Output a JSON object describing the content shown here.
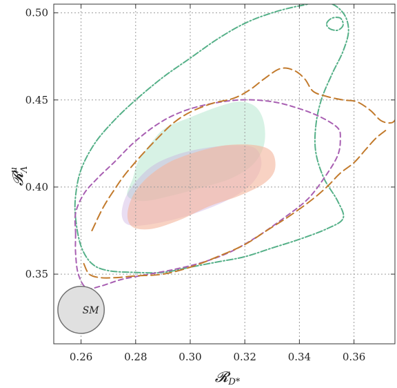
{
  "chart_data": {
    "type": "contour",
    "xlabel": "𝓡",
    "xlabel_sub": "D*",
    "ylabel": "𝓡",
    "ylabel_sup": "μ",
    "ylabel_sub": "Λ",
    "xlim": [
      0.25,
      0.375
    ],
    "ylim": [
      0.31,
      0.505
    ],
    "xticks": [
      0.26,
      0.28,
      0.3,
      0.32,
      0.34,
      0.36
    ],
    "xtick_labels": [
      "0.26",
      "0.28",
      "0.30",
      "0.32",
      "0.34",
      "0.36"
    ],
    "yticks": [
      0.35,
      0.4,
      0.45,
      0.5
    ],
    "ytick_labels": [
      "0.35",
      "0.40",
      "0.45",
      "0.50"
    ],
    "grid": true,
    "sm": {
      "label": "SM",
      "center": [
        0.26,
        0.3295
      ],
      "rx": 0.0085,
      "ry": 0.0135,
      "color": "#e0e0e0",
      "stroke": "#707070"
    },
    "regions": [
      {
        "id": "green",
        "color": "#a6e3c5",
        "opacity": 0.45,
        "points": [
          [
            0.277,
            0.395
          ],
          [
            0.279,
            0.405
          ],
          [
            0.281,
            0.415
          ],
          [
            0.286,
            0.426
          ],
          [
            0.291,
            0.434
          ],
          [
            0.3,
            0.44
          ],
          [
            0.31,
            0.446
          ],
          [
            0.318,
            0.449
          ],
          [
            0.324,
            0.446
          ],
          [
            0.327,
            0.437
          ],
          [
            0.327,
            0.424
          ],
          [
            0.323,
            0.413
          ],
          [
            0.315,
            0.405
          ],
          [
            0.305,
            0.4
          ],
          [
            0.293,
            0.395
          ],
          [
            0.283,
            0.392
          ]
        ]
      },
      {
        "id": "purple",
        "color": "#c6a5dc",
        "opacity": 0.38,
        "points": [
          [
            0.275,
            0.383
          ],
          [
            0.276,
            0.393
          ],
          [
            0.28,
            0.403
          ],
          [
            0.286,
            0.412
          ],
          [
            0.294,
            0.418
          ],
          [
            0.304,
            0.422
          ],
          [
            0.316,
            0.424
          ],
          [
            0.324,
            0.422
          ],
          [
            0.326,
            0.412
          ],
          [
            0.322,
            0.401
          ],
          [
            0.313,
            0.392
          ],
          [
            0.3,
            0.384
          ],
          [
            0.287,
            0.379
          ],
          [
            0.278,
            0.378
          ]
        ]
      },
      {
        "id": "orange",
        "color": "#f3b79e",
        "opacity": 0.62,
        "points": [
          [
            0.277,
            0.384
          ],
          [
            0.279,
            0.395
          ],
          [
            0.284,
            0.405
          ],
          [
            0.292,
            0.414
          ],
          [
            0.302,
            0.42
          ],
          [
            0.313,
            0.424
          ],
          [
            0.324,
            0.424
          ],
          [
            0.33,
            0.42
          ],
          [
            0.331,
            0.41
          ],
          [
            0.327,
            0.402
          ],
          [
            0.318,
            0.395
          ],
          [
            0.307,
            0.389
          ],
          [
            0.296,
            0.381
          ],
          [
            0.286,
            0.376
          ],
          [
            0.279,
            0.377
          ]
        ]
      }
    ],
    "contours": [
      {
        "id": "green-dotdash",
        "color": "#55b088",
        "dash": "9,3,2,3",
        "closed": true,
        "points": [
          [
            0.258,
            0.382
          ],
          [
            0.258,
            0.395
          ],
          [
            0.26,
            0.41
          ],
          [
            0.265,
            0.425
          ],
          [
            0.272,
            0.438
          ],
          [
            0.28,
            0.45
          ],
          [
            0.29,
            0.463
          ],
          [
            0.3,
            0.474
          ],
          [
            0.31,
            0.485
          ],
          [
            0.32,
            0.494
          ],
          [
            0.33,
            0.5
          ],
          [
            0.34,
            0.504
          ],
          [
            0.35,
            0.506
          ],
          [
            0.356,
            0.5
          ],
          [
            0.358,
            0.49
          ],
          [
            0.356,
            0.478
          ],
          [
            0.352,
            0.465
          ],
          [
            0.348,
            0.45
          ],
          [
            0.346,
            0.435
          ],
          [
            0.346,
            0.42
          ],
          [
            0.349,
            0.405
          ],
          [
            0.354,
            0.392
          ],
          [
            0.356,
            0.382
          ],
          [
            0.35,
            0.376
          ],
          [
            0.34,
            0.37
          ],
          [
            0.33,
            0.365
          ],
          [
            0.32,
            0.36
          ],
          [
            0.31,
            0.357
          ],
          [
            0.3,
            0.354
          ],
          [
            0.29,
            0.351
          ],
          [
            0.28,
            0.351
          ],
          [
            0.27,
            0.352
          ],
          [
            0.264,
            0.356
          ],
          [
            0.26,
            0.366
          ]
        ]
      },
      {
        "id": "green-dotdash-blob",
        "color": "#55b088",
        "dash": "9,3,2,3",
        "closed": true,
        "points": [
          [
            0.35,
            0.494
          ],
          [
            0.352,
            0.497
          ],
          [
            0.355,
            0.497
          ],
          [
            0.356,
            0.493
          ],
          [
            0.354,
            0.49
          ],
          [
            0.351,
            0.491
          ]
        ]
      },
      {
        "id": "purple-dashed",
        "color": "#a85fb2",
        "dash": "7,5",
        "closed": true,
        "points": [
          [
            0.258,
            0.373
          ],
          [
            0.258,
            0.385
          ],
          [
            0.261,
            0.396
          ],
          [
            0.266,
            0.405
          ],
          [
            0.272,
            0.414
          ],
          [
            0.279,
            0.425
          ],
          [
            0.287,
            0.435
          ],
          [
            0.295,
            0.442
          ],
          [
            0.305,
            0.447
          ],
          [
            0.318,
            0.45
          ],
          [
            0.33,
            0.449
          ],
          [
            0.34,
            0.445
          ],
          [
            0.348,
            0.44
          ],
          [
            0.354,
            0.434
          ],
          [
            0.355,
            0.428
          ],
          [
            0.354,
            0.418
          ],
          [
            0.349,
            0.405
          ],
          [
            0.343,
            0.393
          ],
          [
            0.335,
            0.383
          ],
          [
            0.325,
            0.372
          ],
          [
            0.315,
            0.363
          ],
          [
            0.305,
            0.357
          ],
          [
            0.295,
            0.353
          ],
          [
            0.285,
            0.35
          ],
          [
            0.275,
            0.347
          ],
          [
            0.267,
            0.343
          ],
          [
            0.262,
            0.342
          ],
          [
            0.259,
            0.35
          ],
          [
            0.258,
            0.362
          ]
        ]
      },
      {
        "id": "orange-longdash-top",
        "color": "#c27a2c",
        "dash": "12,6",
        "closed": false,
        "points": [
          [
            0.264,
            0.375
          ],
          [
            0.268,
            0.388
          ],
          [
            0.272,
            0.398
          ],
          [
            0.276,
            0.407
          ],
          [
            0.282,
            0.418
          ],
          [
            0.288,
            0.428
          ],
          [
            0.294,
            0.437
          ],
          [
            0.3,
            0.443
          ],
          [
            0.308,
            0.448
          ],
          [
            0.316,
            0.451
          ],
          [
            0.322,
            0.456
          ],
          [
            0.327,
            0.462
          ],
          [
            0.333,
            0.468
          ],
          [
            0.338,
            0.467
          ],
          [
            0.342,
            0.462
          ],
          [
            0.345,
            0.455
          ],
          [
            0.35,
            0.452
          ],
          [
            0.356,
            0.45
          ],
          [
            0.361,
            0.449
          ],
          [
            0.366,
            0.444
          ],
          [
            0.37,
            0.438
          ],
          [
            0.374,
            0.437
          ],
          [
            0.376,
            0.441
          ]
        ]
      },
      {
        "id": "orange-longdash-bottom",
        "color": "#c27a2c",
        "dash": "12,6",
        "closed": false,
        "points": [
          [
            0.261,
            0.356
          ],
          [
            0.263,
            0.35
          ],
          [
            0.267,
            0.348
          ],
          [
            0.273,
            0.348
          ],
          [
            0.28,
            0.349
          ],
          [
            0.29,
            0.35
          ],
          [
            0.3,
            0.354
          ],
          [
            0.31,
            0.36
          ],
          [
            0.32,
            0.367
          ],
          [
            0.328,
            0.375
          ],
          [
            0.336,
            0.383
          ],
          [
            0.344,
            0.392
          ],
          [
            0.35,
            0.4
          ],
          [
            0.355,
            0.408
          ],
          [
            0.36,
            0.414
          ],
          [
            0.364,
            0.421
          ],
          [
            0.368,
            0.428
          ],
          [
            0.372,
            0.433
          ]
        ]
      }
    ]
  }
}
